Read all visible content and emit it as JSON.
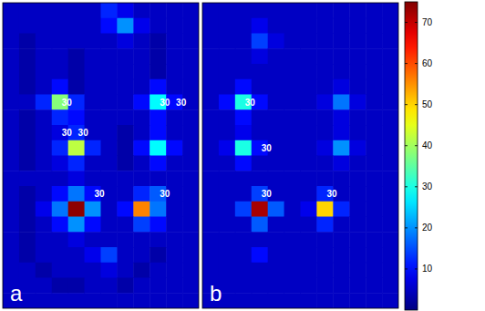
{
  "chart_data": {
    "type": "heatmap",
    "tick_labels": false,
    "colorbar": {
      "lim": [
        0,
        75
      ],
      "ticks": [
        10,
        20,
        30,
        40,
        50,
        60,
        70
      ]
    },
    "panels": [
      {
        "label": "a",
        "cells": [
          [
            5,
            5,
            5,
            5,
            5,
            5,
            12,
            8,
            5,
            5,
            5,
            5
          ],
          [
            5,
            5,
            5,
            5,
            5,
            5,
            10,
            20,
            8,
            5,
            5,
            5
          ],
          [
            5,
            3,
            5,
            5,
            5,
            5,
            5,
            7,
            5,
            3,
            5,
            5
          ],
          [
            5,
            3,
            5,
            5,
            3,
            5,
            5,
            5,
            5,
            3,
            5,
            5
          ],
          [
            5,
            3,
            5,
            5,
            3,
            5,
            5,
            5,
            5,
            3,
            5,
            5
          ],
          [
            5,
            3,
            5,
            10,
            3,
            5,
            5,
            5,
            5,
            10,
            5,
            5
          ],
          [
            5,
            5,
            12,
            38,
            12,
            5,
            5,
            5,
            10,
            28,
            10,
            5
          ],
          [
            5,
            3,
            5,
            12,
            10,
            5,
            5,
            5,
            5,
            10,
            5,
            5
          ],
          [
            5,
            3,
            5,
            7,
            12,
            5,
            5,
            3,
            5,
            10,
            5,
            5
          ],
          [
            5,
            3,
            5,
            12,
            42,
            12,
            5,
            3,
            10,
            28,
            10,
            5
          ],
          [
            5,
            3,
            5,
            7,
            12,
            5,
            5,
            3,
            5,
            10,
            5,
            5
          ],
          [
            5,
            5,
            5,
            5,
            7,
            5,
            5,
            5,
            5,
            5,
            5,
            5
          ],
          [
            5,
            3,
            5,
            10,
            18,
            10,
            5,
            5,
            12,
            16,
            5,
            5
          ],
          [
            5,
            3,
            8,
            18,
            74,
            20,
            5,
            10,
            56,
            18,
            5,
            5
          ],
          [
            5,
            3,
            5,
            10,
            20,
            10,
            5,
            5,
            14,
            10,
            5,
            5
          ],
          [
            5,
            3,
            5,
            5,
            7,
            5,
            5,
            5,
            5,
            5,
            5,
            5
          ],
          [
            5,
            3,
            5,
            5,
            5,
            8,
            14,
            5,
            5,
            3,
            5,
            5
          ],
          [
            5,
            5,
            3,
            5,
            5,
            5,
            7,
            5,
            3,
            5,
            5,
            5
          ],
          [
            5,
            5,
            5,
            3,
            3,
            5,
            5,
            3,
            5,
            5,
            5,
            5
          ],
          [
            5,
            5,
            5,
            5,
            5,
            5,
            5,
            5,
            5,
            5,
            5,
            5
          ]
        ],
        "annotations": [
          {
            "text": "30",
            "row": 6,
            "col": 3
          },
          {
            "text": "30",
            "row": 6,
            "col": 9
          },
          {
            "text": "30",
            "row": 6,
            "col": 10
          },
          {
            "text": "30",
            "row": 8,
            "col": 3
          },
          {
            "text": "30",
            "row": 8,
            "col": 4
          },
          {
            "text": "30",
            "row": 12,
            "col": 5
          },
          {
            "text": "30",
            "row": 12,
            "col": 9
          }
        ]
      },
      {
        "label": "b",
        "cells": [
          [
            5,
            5,
            5,
            5,
            5,
            5,
            5,
            5,
            5,
            5,
            5,
            5
          ],
          [
            5,
            5,
            5,
            8,
            5,
            5,
            5,
            5,
            5,
            5,
            5,
            5
          ],
          [
            5,
            5,
            5,
            14,
            7,
            5,
            5,
            5,
            5,
            5,
            5,
            5
          ],
          [
            5,
            5,
            5,
            7,
            5,
            5,
            5,
            5,
            5,
            5,
            5,
            5
          ],
          [
            5,
            5,
            5,
            5,
            5,
            5,
            5,
            5,
            5,
            5,
            5,
            5
          ],
          [
            5,
            5,
            10,
            5,
            5,
            5,
            5,
            5,
            7,
            5,
            5,
            5
          ],
          [
            5,
            10,
            30,
            10,
            5,
            5,
            5,
            7,
            18,
            7,
            5,
            5
          ],
          [
            5,
            5,
            10,
            5,
            5,
            5,
            5,
            5,
            7,
            5,
            5,
            5
          ],
          [
            5,
            5,
            8,
            5,
            5,
            5,
            5,
            5,
            7,
            5,
            5,
            5
          ],
          [
            5,
            8,
            30,
            10,
            5,
            5,
            5,
            7,
            20,
            7,
            5,
            5
          ],
          [
            5,
            5,
            10,
            5,
            5,
            5,
            5,
            5,
            7,
            5,
            5,
            5
          ],
          [
            5,
            5,
            5,
            5,
            5,
            5,
            5,
            5,
            5,
            5,
            5,
            5
          ],
          [
            5,
            5,
            5,
            14,
            5,
            5,
            5,
            12,
            5,
            5,
            5,
            5
          ],
          [
            5,
            5,
            14,
            72,
            16,
            5,
            8,
            50,
            12,
            5,
            5,
            5
          ],
          [
            5,
            5,
            5,
            16,
            5,
            5,
            5,
            12,
            5,
            5,
            5,
            5
          ],
          [
            5,
            5,
            5,
            5,
            5,
            5,
            5,
            5,
            5,
            5,
            5,
            5
          ],
          [
            5,
            5,
            5,
            10,
            5,
            5,
            5,
            5,
            5,
            5,
            5,
            5
          ],
          [
            5,
            5,
            5,
            5,
            5,
            5,
            5,
            5,
            5,
            5,
            5,
            5
          ],
          [
            5,
            5,
            5,
            5,
            5,
            5,
            5,
            5,
            5,
            5,
            5,
            5
          ],
          [
            5,
            5,
            5,
            5,
            5,
            5,
            5,
            5,
            5,
            5,
            5,
            5
          ]
        ],
        "annotations": [
          {
            "text": "30",
            "row": 6,
            "col": 2
          },
          {
            "text": "30",
            "row": 9,
            "col": 3
          },
          {
            "text": "30",
            "row": 12,
            "col": 3
          },
          {
            "text": "30",
            "row": 12,
            "col": 7
          }
        ]
      }
    ]
  }
}
